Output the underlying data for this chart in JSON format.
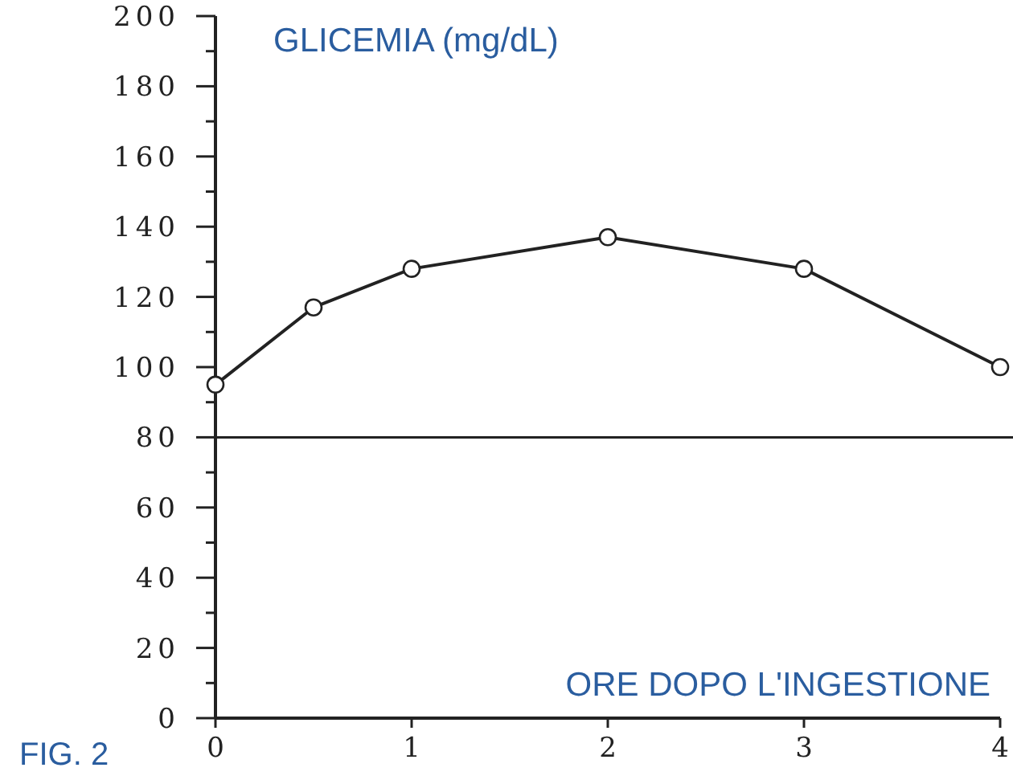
{
  "chart_data": {
    "type": "line",
    "ylabel": "GLICEMIA (mg/dL)",
    "xlabel": "ORE DOPO L'INGESTIONE",
    "annotations": [
      "FIG. 2"
    ],
    "x": [
      0,
      0.5,
      1,
      2,
      3,
      4
    ],
    "series": [
      {
        "color": "#222222",
        "values": [
          95,
          117,
          128,
          137,
          128,
          100
        ]
      }
    ],
    "xlim": [
      0,
      4
    ],
    "xticks": [
      0,
      1,
      2,
      3,
      4
    ],
    "ylim": [
      0,
      200
    ],
    "yticks": [
      0,
      {
        "value": 10,
        "label": null
      },
      20,
      {
        "value": 30,
        "label": null
      },
      40,
      {
        "value": 50,
        "label": null
      },
      60,
      {
        "value": 70,
        "label": null
      },
      80,
      {
        "value": 90,
        "label": null
      },
      100,
      {
        "value": 110,
        "label": null
      },
      120,
      {
        "value": 130,
        "label": null
      },
      140,
      {
        "value": 150,
        "label": null
      },
      160,
      {
        "value": 170,
        "label": null
      },
      180,
      {
        "value": 190,
        "label": null
      },
      200
    ],
    "ref_lines": [
      {
        "axis": "y",
        "value": 80,
        "color": "#222222"
      }
    ],
    "marker": "circle",
    "line_style": "solid",
    "grid": false
  }
}
